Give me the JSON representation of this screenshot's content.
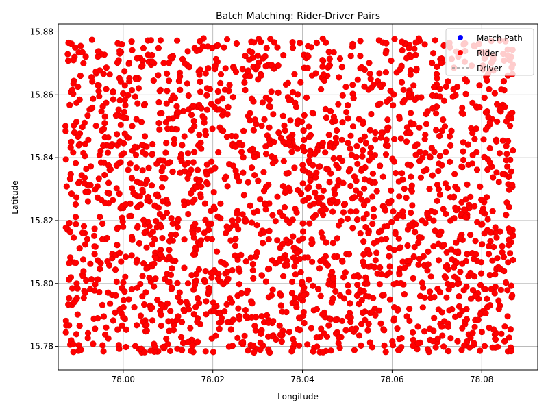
{
  "chart_data": {
    "type": "scatter",
    "title": "Batch Matching: Rider-Driver Pairs",
    "xlabel": "Longitude",
    "ylabel": "Latitude",
    "xlim": [
      77.9855,
      78.0925
    ],
    "ylim": [
      15.7725,
      15.8825
    ],
    "xticks": [
      78.0,
      78.02,
      78.04,
      78.06,
      78.08
    ],
    "xtick_labels": [
      "78.00",
      "78.02",
      "78.04",
      "78.06",
      "78.08"
    ],
    "yticks": [
      15.78,
      15.8,
      15.82,
      15.84,
      15.86,
      15.88
    ],
    "ytick_labels": [
      "15.78",
      "15.80",
      "15.82",
      "15.84",
      "15.86",
      "15.88"
    ],
    "grid": true,
    "legend": {
      "placement": "top-right",
      "entries": [
        {
          "label": "Match Path",
          "marker": "circle",
          "color": "#0000ff"
        },
        {
          "label": "Rider",
          "marker": "circle",
          "color": "#ff0000"
        },
        {
          "label": "Driver",
          "marker": "dashed-line",
          "color": "#999999"
        }
      ]
    },
    "series": [
      {
        "name": "Rider",
        "color": "#ff0000",
        "edgecolor": "#dd0000",
        "marker": "circle",
        "x_range": [
          77.987,
          78.087
        ],
        "y_range": [
          15.778,
          15.878
        ],
        "approx_count": 2000,
        "points": [
          [
            77.9878,
            15.8765
          ],
          [
            77.9905,
            15.8755
          ],
          [
            77.9931,
            15.8642
          ],
          [
            77.9962,
            15.8574
          ],
          [
            77.9987,
            15.8702
          ],
          [
            78.0031,
            15.8716
          ],
          [
            78.0068,
            15.8645
          ],
          [
            78.0102,
            15.8701
          ],
          [
            78.0144,
            15.8738
          ],
          [
            78.0172,
            15.8679
          ],
          [
            78.0211,
            15.8757
          ],
          [
            78.0253,
            15.8763
          ],
          [
            78.0281,
            15.8711
          ],
          [
            78.0307,
            15.8768
          ],
          [
            78.0346,
            15.8693
          ],
          [
            78.0378,
            15.8767
          ],
          [
            78.0413,
            15.8722
          ],
          [
            78.0452,
            15.8766
          ],
          [
            78.0484,
            15.8715
          ],
          [
            78.0512,
            15.8761
          ],
          [
            78.0549,
            15.8701
          ],
          [
            78.0587,
            15.8764
          ],
          [
            78.0621,
            15.8689
          ],
          [
            78.0653,
            15.8766
          ],
          [
            78.0692,
            15.8732
          ],
          [
            78.0728,
            15.8765
          ],
          [
            78.0762,
            15.8705
          ],
          [
            78.0794,
            15.8762
          ],
          [
            78.0826,
            15.8712
          ],
          [
            78.0858,
            15.8744
          ],
          [
            77.9883,
            15.8347
          ],
          [
            77.9916,
            15.8291
          ],
          [
            77.9951,
            15.8266
          ],
          [
            77.9977,
            15.8265
          ],
          [
            78.0011,
            15.8361
          ],
          [
            78.0053,
            15.8328
          ],
          [
            78.0089,
            15.8391
          ],
          [
            78.0127,
            15.8352
          ],
          [
            78.0163,
            15.8305
          ],
          [
            78.0197,
            15.8387
          ],
          [
            78.0229,
            15.8339
          ],
          [
            78.0268,
            15.8401
          ],
          [
            78.0301,
            15.8326
          ],
          [
            78.0334,
            15.8382
          ],
          [
            78.0369,
            15.8449
          ],
          [
            78.0401,
            15.8318
          ],
          [
            78.0437,
            15.8371
          ],
          [
            78.0471,
            15.8298
          ],
          [
            78.0506,
            15.8363
          ],
          [
            78.0539,
            15.8331
          ],
          [
            78.0573,
            15.8374
          ],
          [
            78.0608,
            15.8351
          ],
          [
            78.0642,
            15.8339
          ],
          [
            78.0677,
            15.8362
          ],
          [
            78.0711,
            15.8376
          ],
          [
            78.0746,
            15.8299
          ],
          [
            78.0779,
            15.8381
          ],
          [
            78.0813,
            15.8362
          ],
          [
            78.0847,
            15.8348
          ],
          [
            78.0866,
            15.8356
          ],
          [
            77.9879,
            15.8012
          ],
          [
            77.9912,
            15.7954
          ],
          [
            77.9948,
            15.8046
          ],
          [
            77.9982,
            15.7907
          ],
          [
            78.0019,
            15.7981
          ],
          [
            78.0052,
            15.7868
          ],
          [
            78.0087,
            15.7931
          ],
          [
            78.0121,
            15.8001
          ],
          [
            78.0158,
            15.7902
          ],
          [
            78.0191,
            15.7973
          ],
          [
            78.0226,
            15.7911
          ],
          [
            78.0259,
            15.7998
          ],
          [
            78.0296,
            15.7893
          ],
          [
            78.0331,
            15.7962
          ],
          [
            78.0364,
            15.7909
          ],
          [
            78.0399,
            15.8004
          ],
          [
            78.0432,
            15.7918
          ],
          [
            78.0468,
            15.7993
          ],
          [
            78.0502,
            15.7894
          ],
          [
            78.0537,
            15.7975
          ],
          [
            78.0571,
            15.7914
          ],
          [
            78.0604,
            15.7998
          ],
          [
            78.0639,
            15.7881
          ],
          [
            78.0673,
            15.7955
          ],
          [
            78.0707,
            15.7972
          ],
          [
            78.0741,
            15.7894
          ],
          [
            78.0776,
            15.7951
          ],
          [
            78.0809,
            15.7905
          ],
          [
            78.0843,
            15.7979
          ],
          [
            78.0868,
            15.7962
          ],
          [
            77.9889,
            15.7782
          ],
          [
            77.9921,
            15.7826
          ],
          [
            77.9956,
            15.7784
          ],
          [
            77.9991,
            15.7792
          ],
          [
            78.0027,
            15.7801
          ],
          [
            78.0061,
            15.7786
          ],
          [
            78.0096,
            15.7824
          ],
          [
            78.0131,
            15.7788
          ],
          [
            78.0166,
            15.7814
          ],
          [
            78.0201,
            15.7782
          ],
          [
            78.0236,
            15.7799
          ],
          [
            78.0271,
            15.7833
          ],
          [
            78.0306,
            15.7789
          ],
          [
            78.0341,
            15.7822
          ],
          [
            78.0376,
            15.7784
          ],
          [
            78.0411,
            15.7806
          ],
          [
            78.0446,
            15.7781
          ],
          [
            78.0481,
            15.7829
          ],
          [
            78.0516,
            15.7788
          ],
          [
            78.0551,
            15.7812
          ],
          [
            78.0586,
            15.7782
          ],
          [
            78.0621,
            15.7826
          ],
          [
            78.0656,
            15.7791
          ],
          [
            78.0691,
            15.7817
          ],
          [
            78.0726,
            15.7785
          ],
          [
            78.0761,
            15.7803
          ],
          [
            78.0796,
            15.7786
          ],
          [
            78.0831,
            15.7822
          ],
          [
            78.0866,
            15.7785
          ],
          [
            78.0851,
            15.7816
          ]
        ]
      },
      {
        "name": "Match Path",
        "color": "#0000ff",
        "marker": "circle",
        "points": []
      },
      {
        "name": "Driver",
        "color": "#999999",
        "marker": "dashed-line",
        "points": []
      }
    ]
  }
}
